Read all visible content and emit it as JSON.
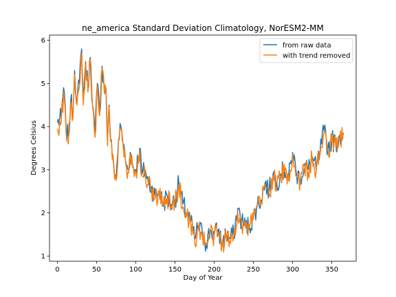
{
  "chart_data": {
    "type": "line",
    "title": "ne_america Standard Deviation Climatology, NorESM2-MM",
    "xlabel": "Day of Year",
    "ylabel": "Degrees Celsius",
    "xlim": [
      -10,
      381
    ],
    "ylim": [
      0.88,
      6.12
    ],
    "xticks": [
      0,
      50,
      100,
      150,
      200,
      250,
      300,
      350
    ],
    "yticks": [
      1,
      2,
      3,
      4,
      5,
      6
    ],
    "grid": false,
    "legend_position": "top-right",
    "series": [
      {
        "name": "from raw data",
        "color": "#1f77b4",
        "anchors": [
          [
            0,
            4.1
          ],
          [
            5,
            4.2
          ],
          [
            8,
            4.9
          ],
          [
            11,
            4.0
          ],
          [
            14,
            3.7
          ],
          [
            17,
            4.6
          ],
          [
            20,
            4.3
          ],
          [
            22,
            5.3
          ],
          [
            25,
            4.6
          ],
          [
            28,
            5.0
          ],
          [
            31,
            5.8
          ],
          [
            33,
            4.6
          ],
          [
            36,
            5.5
          ],
          [
            39,
            4.9
          ],
          [
            42,
            5.6
          ],
          [
            45,
            4.5
          ],
          [
            48,
            3.8
          ],
          [
            51,
            5.0
          ],
          [
            54,
            4.3
          ],
          [
            57,
            5.4
          ],
          [
            60,
            4.8
          ],
          [
            62,
            4.9
          ],
          [
            64,
            3.6
          ],
          [
            66,
            4.5
          ],
          [
            68,
            3.7
          ],
          [
            70,
            3.3
          ],
          [
            72,
            3.1
          ],
          [
            75,
            2.8
          ],
          [
            78,
            3.7
          ],
          [
            81,
            4.0
          ],
          [
            84,
            3.6
          ],
          [
            87,
            3.2
          ],
          [
            90,
            3.0
          ],
          [
            93,
            3.4
          ],
          [
            96,
            3.1
          ],
          [
            100,
            3.0
          ],
          [
            105,
            3.5
          ],
          [
            108,
            2.9
          ],
          [
            112,
            3.0
          ],
          [
            116,
            2.7
          ],
          [
            120,
            2.6
          ],
          [
            125,
            2.4
          ],
          [
            130,
            2.5
          ],
          [
            135,
            2.2
          ],
          [
            140,
            2.4
          ],
          [
            145,
            2.2
          ],
          [
            150,
            2.3
          ],
          [
            155,
            2.7
          ],
          [
            160,
            2.2
          ],
          [
            165,
            2.0
          ],
          [
            170,
            1.8
          ],
          [
            175,
            1.4
          ],
          [
            180,
            1.7
          ],
          [
            185,
            1.5
          ],
          [
            190,
            1.3
          ],
          [
            195,
            1.6
          ],
          [
            200,
            1.5
          ],
          [
            205,
            1.6
          ],
          [
            210,
            1.3
          ],
          [
            215,
            1.5
          ],
          [
            220,
            1.4
          ],
          [
            225,
            1.5
          ],
          [
            230,
            2.1
          ],
          [
            235,
            1.8
          ],
          [
            240,
            1.7
          ],
          [
            245,
            1.7
          ],
          [
            250,
            1.9
          ],
          [
            255,
            2.2
          ],
          [
            260,
            2.3
          ],
          [
            265,
            2.7
          ],
          [
            270,
            2.5
          ],
          [
            275,
            2.9
          ],
          [
            280,
            2.7
          ],
          [
            285,
            2.9
          ],
          [
            290,
            3.0
          ],
          [
            295,
            2.8
          ],
          [
            300,
            3.4
          ],
          [
            305,
            2.9
          ],
          [
            310,
            2.8
          ],
          [
            315,
            3.1
          ],
          [
            320,
            3.0
          ],
          [
            325,
            3.3
          ],
          [
            330,
            3.0
          ],
          [
            335,
            3.4
          ],
          [
            340,
            3.9
          ],
          [
            345,
            3.5
          ],
          [
            350,
            3.7
          ],
          [
            355,
            3.6
          ],
          [
            360,
            3.8
          ],
          [
            365,
            3.85
          ]
        ]
      },
      {
        "name": "with trend removed",
        "color": "#ff7f0e",
        "anchors": [
          [
            0,
            3.95
          ],
          [
            5,
            4.1
          ],
          [
            8,
            4.8
          ],
          [
            11,
            3.9
          ],
          [
            14,
            3.6
          ],
          [
            17,
            4.5
          ],
          [
            20,
            4.2
          ],
          [
            22,
            5.2
          ],
          [
            25,
            4.5
          ],
          [
            28,
            4.9
          ],
          [
            31,
            5.7
          ],
          [
            33,
            4.5
          ],
          [
            36,
            5.45
          ],
          [
            39,
            4.8
          ],
          [
            42,
            5.55
          ],
          [
            45,
            4.45
          ],
          [
            48,
            3.75
          ],
          [
            51,
            4.95
          ],
          [
            54,
            4.25
          ],
          [
            57,
            5.35
          ],
          [
            60,
            4.75
          ],
          [
            62,
            4.85
          ],
          [
            64,
            3.55
          ],
          [
            66,
            4.45
          ],
          [
            68,
            3.65
          ],
          [
            70,
            3.25
          ],
          [
            72,
            3.05
          ],
          [
            75,
            2.75
          ],
          [
            78,
            3.65
          ],
          [
            81,
            3.95
          ],
          [
            84,
            3.55
          ],
          [
            87,
            3.15
          ],
          [
            90,
            2.95
          ],
          [
            93,
            3.35
          ],
          [
            96,
            3.05
          ],
          [
            100,
            2.95
          ],
          [
            105,
            3.45
          ],
          [
            108,
            2.85
          ],
          [
            112,
            2.95
          ],
          [
            116,
            2.65
          ],
          [
            120,
            2.55
          ],
          [
            125,
            2.35
          ],
          [
            130,
            2.45
          ],
          [
            135,
            2.15
          ],
          [
            140,
            2.35
          ],
          [
            145,
            2.15
          ],
          [
            150,
            2.25
          ],
          [
            155,
            2.65
          ],
          [
            160,
            2.15
          ],
          [
            165,
            1.95
          ],
          [
            170,
            1.75
          ],
          [
            175,
            1.35
          ],
          [
            180,
            1.65
          ],
          [
            185,
            1.45
          ],
          [
            190,
            1.25
          ],
          [
            195,
            1.55
          ],
          [
            200,
            1.45
          ],
          [
            205,
            1.55
          ],
          [
            210,
            1.25
          ],
          [
            215,
            1.45
          ],
          [
            220,
            1.35
          ],
          [
            225,
            1.45
          ],
          [
            230,
            2.05
          ],
          [
            235,
            1.75
          ],
          [
            240,
            1.65
          ],
          [
            245,
            1.65
          ],
          [
            250,
            1.85
          ],
          [
            255,
            2.15
          ],
          [
            260,
            2.25
          ],
          [
            265,
            2.65
          ],
          [
            270,
            2.45
          ],
          [
            275,
            2.85
          ],
          [
            280,
            2.65
          ],
          [
            285,
            2.85
          ],
          [
            290,
            2.95
          ],
          [
            295,
            2.75
          ],
          [
            300,
            3.35
          ],
          [
            305,
            2.85
          ],
          [
            310,
            2.75
          ],
          [
            315,
            3.05
          ],
          [
            320,
            2.95
          ],
          [
            325,
            3.25
          ],
          [
            330,
            2.95
          ],
          [
            335,
            3.35
          ],
          [
            340,
            3.85
          ],
          [
            345,
            3.45
          ],
          [
            350,
            3.65
          ],
          [
            355,
            3.55
          ],
          [
            360,
            3.75
          ],
          [
            365,
            3.75
          ]
        ]
      }
    ]
  }
}
